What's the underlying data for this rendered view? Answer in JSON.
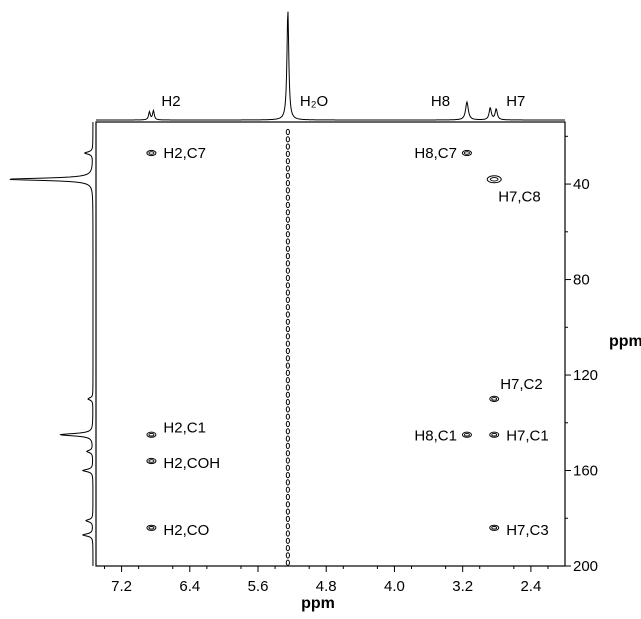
{
  "chart_data": {
    "type": "scatter",
    "title": "",
    "xlabel": "ppm",
    "ylabel": "ppm",
    "x_axis": {
      "reversed": true,
      "range": [
        7.5,
        2.0
      ],
      "ticks": [
        7.2,
        6.4,
        5.6,
        4.8,
        4.0,
        3.2,
        2.4
      ],
      "tick_labels": [
        "7.2",
        "6.4",
        "5.6",
        "4.8",
        "4.0",
        "3.2",
        "2.4"
      ]
    },
    "y_axis": {
      "reversed": true,
      "range": [
        14,
        200
      ],
      "ticks": [
        40,
        80,
        120,
        160,
        200
      ],
      "tick_labels": [
        "40",
        "80",
        "120",
        "160",
        "200"
      ]
    },
    "proton_peaks": [
      {
        "label": "H2",
        "ppm": 6.85
      },
      {
        "label": "H₂O",
        "ppm": 5.25
      },
      {
        "label": "H8",
        "ppm": 3.15
      },
      {
        "label": "H7",
        "ppm": 2.83
      }
    ],
    "carbon_peaks": [
      {
        "ppm": 27
      },
      {
        "ppm": 38
      },
      {
        "ppm": 130
      },
      {
        "ppm": 145
      },
      {
        "ppm": 152
      },
      {
        "ppm": 160
      },
      {
        "ppm": 181
      },
      {
        "ppm": 187
      }
    ],
    "cross_peaks": [
      {
        "label": "H2,C7",
        "x": 6.85,
        "y": 27
      },
      {
        "label": "H8,C7",
        "x": 3.15,
        "y": 27
      },
      {
        "label": "H7,C8",
        "x": 2.83,
        "y": 38
      },
      {
        "label": "H7,C2",
        "x": 2.83,
        "y": 130
      },
      {
        "label": "H2,C1",
        "x": 6.85,
        "y": 145
      },
      {
        "label": "H8,C1",
        "x": 3.15,
        "y": 145
      },
      {
        "label": "H7,C1",
        "x": 2.83,
        "y": 145
      },
      {
        "label": "H2,COH",
        "x": 6.85,
        "y": 156
      },
      {
        "label": "H2,CO",
        "x": 6.85,
        "y": 184
      },
      {
        "label": "H7,C3",
        "x": 2.83,
        "y": 184
      }
    ],
    "water_ridge_x": 5.25,
    "grid": false
  }
}
